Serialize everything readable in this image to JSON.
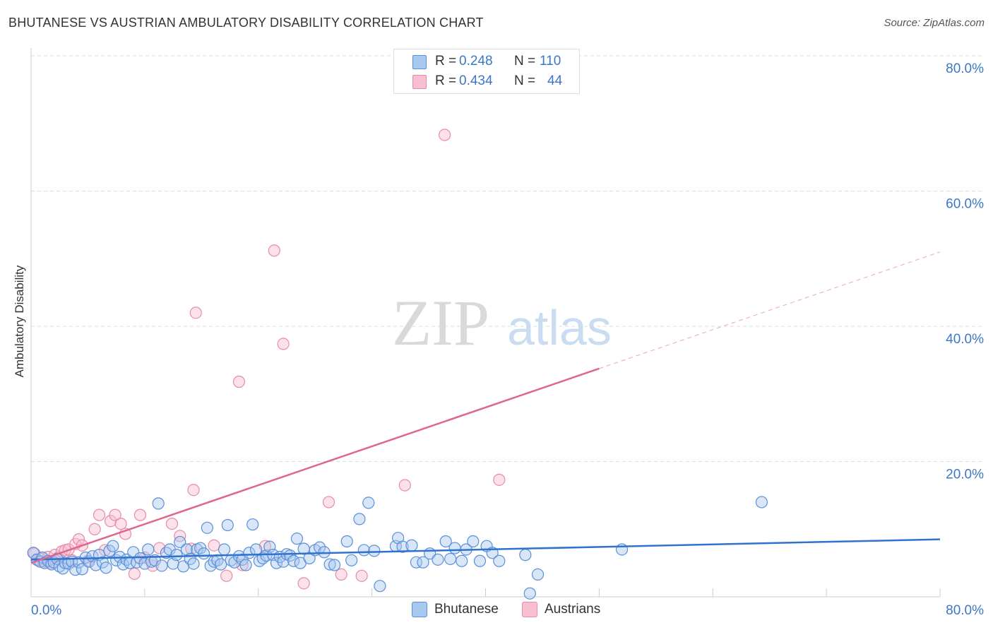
{
  "header": {
    "title": "BHUTANESE VS AUSTRIAN AMBULATORY DISABILITY CORRELATION CHART",
    "source": "Source: ZipAtlas.com"
  },
  "watermark": {
    "zip": "ZIP",
    "atlas": "atlas"
  },
  "stats": {
    "rows": [
      {
        "r_label": "R =",
        "r_value": "0.248",
        "n_label": "N =",
        "n_value": "110"
      },
      {
        "r_label": "R =",
        "r_value": "0.434",
        "n_label": "N =",
        "n_value": "44"
      }
    ]
  },
  "legend": {
    "items": [
      {
        "label": "Bhutanese"
      },
      {
        "label": "Austrians"
      }
    ]
  },
  "colors": {
    "bhutanese_fill": "#a9c8f0",
    "bhutanese_stroke": "#5a8fd8",
    "bhutanese_line": "#2f72cf",
    "austrians_fill": "#f7bfd0",
    "austrians_stroke": "#e88aa8",
    "austrians_line": "#e0658f",
    "grid": "#dddddd",
    "tick_text": "#3a78c6"
  },
  "chart_data": {
    "type": "scatter",
    "title": "BHUTANESE VS AUSTRIAN AMBULATORY DISABILITY CORRELATION CHART",
    "xlabel": "",
    "ylabel": "Ambulatory Disability",
    "xlim": [
      0,
      80
    ],
    "ylim": [
      0,
      80
    ],
    "x_tick_labels": [
      "0.0%",
      "80.0%"
    ],
    "y_ticks": [
      20,
      40,
      60,
      80
    ],
    "y_tick_labels": [
      "20.0%",
      "40.0%",
      "60.0%",
      "80.0%"
    ],
    "grid": true,
    "legend_position": "bottom-center",
    "series": [
      {
        "name": "Bhutanese",
        "r": 0.248,
        "n": 110,
        "trend": {
          "x": [
            0,
            80
          ],
          "y": [
            5.5,
            8.5
          ],
          "style": "solid"
        },
        "points": [
          [
            0.2,
            6.5
          ],
          [
            0.5,
            5.5
          ],
          [
            0.8,
            5.2
          ],
          [
            1.0,
            5.8
          ],
          [
            1.2,
            5.0
          ],
          [
            1.5,
            5.3
          ],
          [
            1.8,
            4.8
          ],
          [
            2.0,
            5.1
          ],
          [
            2.3,
            5.6
          ],
          [
            2.5,
            4.5
          ],
          [
            2.8,
            4.2
          ],
          [
            3.0,
            5.0
          ],
          [
            3.3,
            4.9
          ],
          [
            3.6,
            5.2
          ],
          [
            3.9,
            4.0
          ],
          [
            4.2,
            5.1
          ],
          [
            4.5,
            4.1
          ],
          [
            4.8,
            5.8
          ],
          [
            5.1,
            5.2
          ],
          [
            5.4,
            6.0
          ],
          [
            5.7,
            4.7
          ],
          [
            6.0,
            6.2
          ],
          [
            6.3,
            5.1
          ],
          [
            6.6,
            4.3
          ],
          [
            6.9,
            6.8
          ],
          [
            7.2,
            7.5
          ],
          [
            7.5,
            5.4
          ],
          [
            7.8,
            5.9
          ],
          [
            8.1,
            4.8
          ],
          [
            8.4,
            5.5
          ],
          [
            8.7,
            5.0
          ],
          [
            9.0,
            6.6
          ],
          [
            9.3,
            5.1
          ],
          [
            9.6,
            5.7
          ],
          [
            10.0,
            4.9
          ],
          [
            10.3,
            7.0
          ],
          [
            10.6,
            5.2
          ],
          [
            10.9,
            5.4
          ],
          [
            11.2,
            13.8
          ],
          [
            11.5,
            4.6
          ],
          [
            11.9,
            6.5
          ],
          [
            12.2,
            7.0
          ],
          [
            12.5,
            4.9
          ],
          [
            12.8,
            6.2
          ],
          [
            13.1,
            8.1
          ],
          [
            13.4,
            4.5
          ],
          [
            13.7,
            7.0
          ],
          [
            14.0,
            5.6
          ],
          [
            14.3,
            4.9
          ],
          [
            14.6,
            7.0
          ],
          [
            14.9,
            7.2
          ],
          [
            15.2,
            6.4
          ],
          [
            15.5,
            10.2
          ],
          [
            15.8,
            4.6
          ],
          [
            16.1,
            5.2
          ],
          [
            16.4,
            5.4
          ],
          [
            16.7,
            4.8
          ],
          [
            17.0,
            7.0
          ],
          [
            17.3,
            10.6
          ],
          [
            17.6,
            5.4
          ],
          [
            17.9,
            5.1
          ],
          [
            18.3,
            6.0
          ],
          [
            18.6,
            5.5
          ],
          [
            18.9,
            4.7
          ],
          [
            19.2,
            6.5
          ],
          [
            19.5,
            10.7
          ],
          [
            19.8,
            7.0
          ],
          [
            20.1,
            5.3
          ],
          [
            20.4,
            5.7
          ],
          [
            20.7,
            6.1
          ],
          [
            21.0,
            7.4
          ],
          [
            21.3,
            6.2
          ],
          [
            21.6,
            5.0
          ],
          [
            21.9,
            5.9
          ],
          [
            22.2,
            5.2
          ],
          [
            22.5,
            6.3
          ],
          [
            22.8,
            6.1
          ],
          [
            23.1,
            5.3
          ],
          [
            23.4,
            8.6
          ],
          [
            23.7,
            5.0
          ],
          [
            24.0,
            7.1
          ],
          [
            24.5,
            5.7
          ],
          [
            25.0,
            6.9
          ],
          [
            25.4,
            7.3
          ],
          [
            25.8,
            6.6
          ],
          [
            26.3,
            4.8
          ],
          [
            26.7,
            4.7
          ],
          [
            27.8,
            8.2
          ],
          [
            28.2,
            5.4
          ],
          [
            28.9,
            11.5
          ],
          [
            29.3,
            6.9
          ],
          [
            29.7,
            13.9
          ],
          [
            30.2,
            6.8
          ],
          [
            30.7,
            1.6
          ],
          [
            32.1,
            7.5
          ],
          [
            32.3,
            8.7
          ],
          [
            32.7,
            7.4
          ],
          [
            33.5,
            7.6
          ],
          [
            33.9,
            5.1
          ],
          [
            34.5,
            5.1
          ],
          [
            35.1,
            6.4
          ],
          [
            35.8,
            5.5
          ],
          [
            36.5,
            8.2
          ],
          [
            36.9,
            5.6
          ],
          [
            37.3,
            7.2
          ],
          [
            37.9,
            5.3
          ],
          [
            38.3,
            7.0
          ],
          [
            38.9,
            8.2
          ],
          [
            39.5,
            5.3
          ],
          [
            40.1,
            7.5
          ],
          [
            40.6,
            6.5
          ],
          [
            41.2,
            5.3
          ],
          [
            43.5,
            6.2
          ],
          [
            43.9,
            0.5
          ],
          [
            44.6,
            3.3
          ],
          [
            52.0,
            7.0
          ],
          [
            64.3,
            14.0
          ]
        ]
      },
      {
        "name": "Austrians",
        "r": 0.434,
        "n": 44,
        "trend": {
          "x": [
            0,
            80
          ],
          "y": [
            5.0,
            51.0
          ],
          "solid_until_x": 50,
          "style": "solid-then-dashed"
        },
        "points": [
          [
            0.3,
            6.4
          ],
          [
            0.6,
            5.4
          ],
          [
            0.9,
            5.6
          ],
          [
            1.2,
            5.2
          ],
          [
            1.5,
            5.9
          ],
          [
            1.8,
            5.0
          ],
          [
            2.1,
            6.2
          ],
          [
            2.4,
            5.8
          ],
          [
            2.7,
            6.7
          ],
          [
            3.0,
            6.9
          ],
          [
            3.3,
            7.0
          ],
          [
            3.6,
            5.4
          ],
          [
            3.9,
            7.8
          ],
          [
            4.2,
            8.5
          ],
          [
            4.5,
            7.6
          ],
          [
            5.0,
            5.3
          ],
          [
            5.6,
            10.0
          ],
          [
            6.0,
            12.1
          ],
          [
            6.5,
            6.9
          ],
          [
            7.0,
            11.2
          ],
          [
            7.4,
            12.1
          ],
          [
            7.9,
            10.8
          ],
          [
            8.3,
            9.3
          ],
          [
            9.1,
            3.4
          ],
          [
            9.6,
            12.1
          ],
          [
            10.0,
            5.8
          ],
          [
            10.7,
            4.6
          ],
          [
            11.3,
            7.2
          ],
          [
            12.4,
            10.8
          ],
          [
            13.1,
            9.0
          ],
          [
            14.1,
            7.1
          ],
          [
            14.3,
            15.8
          ],
          [
            14.5,
            42.0
          ],
          [
            16.1,
            7.6
          ],
          [
            17.2,
            3.1
          ],
          [
            18.3,
            31.8
          ],
          [
            18.6,
            4.7
          ],
          [
            20.6,
            7.5
          ],
          [
            21.4,
            51.2
          ],
          [
            22.2,
            37.4
          ],
          [
            24.0,
            2.0
          ],
          [
            26.2,
            14.0
          ],
          [
            27.3,
            3.3
          ],
          [
            29.1,
            3.1
          ],
          [
            32.9,
            16.5
          ],
          [
            36.4,
            68.3
          ],
          [
            41.2,
            17.3
          ]
        ]
      }
    ]
  }
}
